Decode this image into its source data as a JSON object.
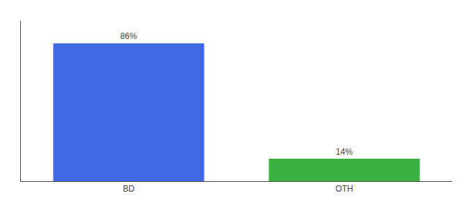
{
  "chart_data": {
    "type": "bar",
    "categories": [
      "BD",
      "OTH"
    ],
    "values": [
      86,
      14
    ],
    "value_labels": [
      "86%",
      "14%"
    ],
    "data_labels": true,
    "colors": [
      "#4169e1",
      "#3cb043"
    ],
    "ylim": [
      0,
      100
    ],
    "tick_labels": "x"
  }
}
